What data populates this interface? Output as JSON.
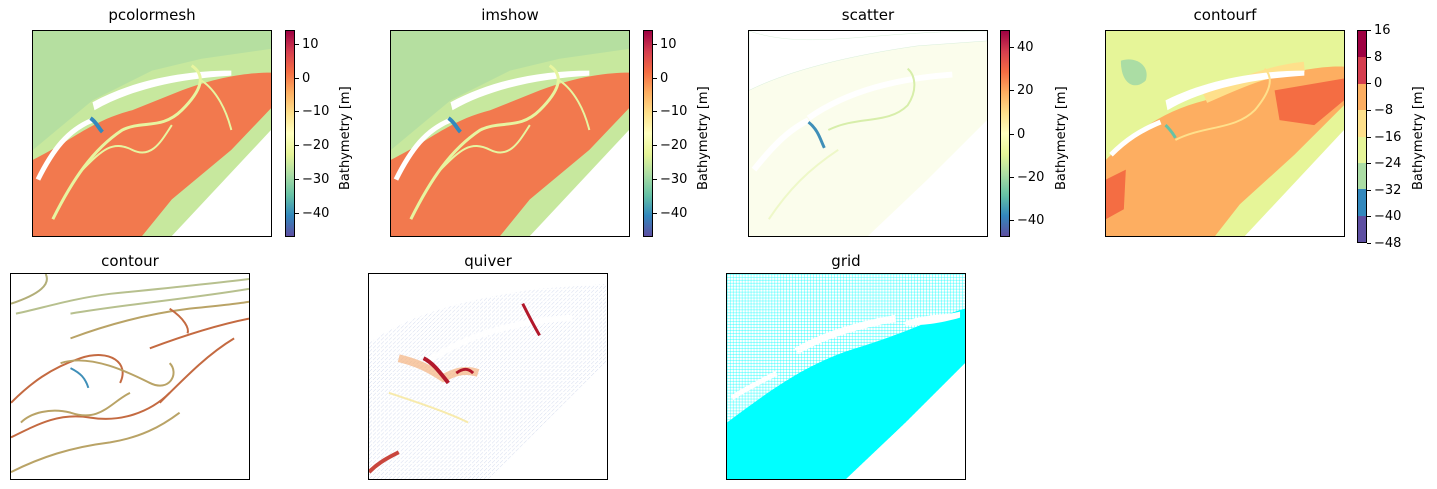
{
  "colors": {
    "cmap": [
      "#5e4fa2",
      "#3288bd",
      "#66c2a5",
      "#abdda4",
      "#e6f598",
      "#ffffbf",
      "#fee08b",
      "#fdae61",
      "#f46d43",
      "#d53e4f",
      "#9e0142"
    ],
    "grid": "#00ffff"
  },
  "chart_data": [
    {
      "type": "heatmap",
      "title": "pcolormesh",
      "colorbar": {
        "label": "Bathymetry [m]",
        "ticks": [
          "10",
          "0",
          "−10",
          "−20",
          "−30",
          "−40"
        ],
        "range": [
          -47,
          14
        ]
      }
    },
    {
      "type": "heatmap",
      "title": "imshow",
      "colorbar": {
        "label": "Bathymetry [m]",
        "ticks": [
          "10",
          "0",
          "−10",
          "−20",
          "−30",
          "−40"
        ],
        "range": [
          -47,
          14
        ]
      }
    },
    {
      "type": "scatter",
      "title": "scatter",
      "colorbar": {
        "label": "Bathymetry [m]",
        "ticks": [
          "40",
          "20",
          "0",
          "−20",
          "−40"
        ],
        "range": [
          -48,
          48
        ]
      }
    },
    {
      "type": "heatmap",
      "title": "contourf",
      "colorbar": {
        "label": "Bathymetry [m]",
        "ticks": [
          "16",
          "8",
          "0",
          "−8",
          "−16",
          "−24",
          "−32",
          "−40",
          "−48"
        ],
        "range": [
          -48,
          16
        ],
        "discrete": true
      }
    },
    {
      "type": "line",
      "title": "contour"
    },
    {
      "type": "scatter",
      "title": "quiver"
    },
    {
      "type": "scatter",
      "title": "grid"
    }
  ]
}
